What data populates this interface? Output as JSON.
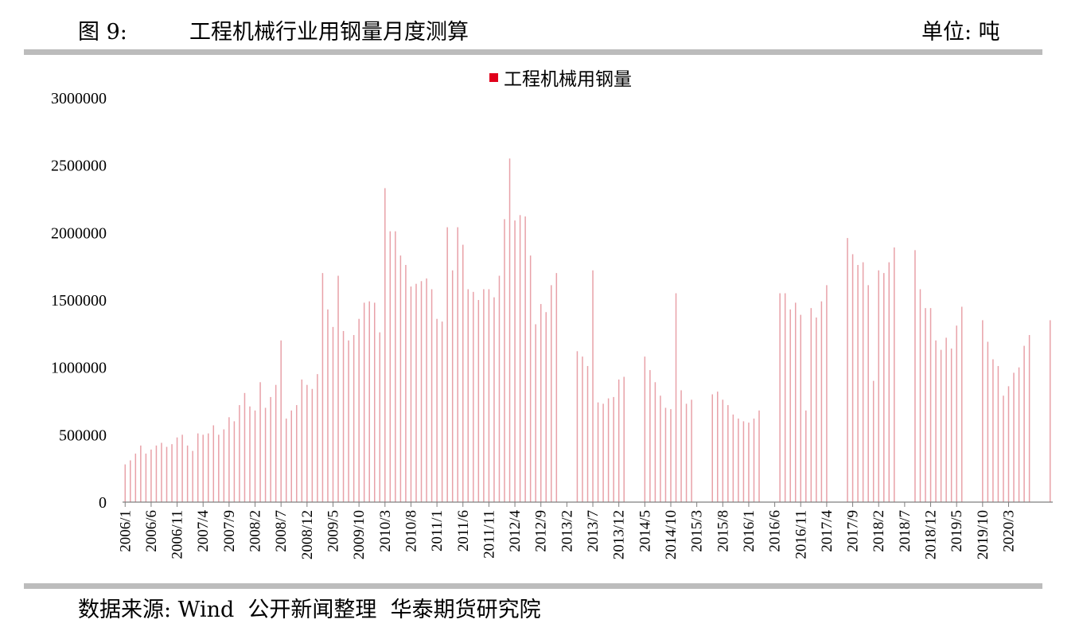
{
  "header": {
    "figure_label": "图 9:",
    "title": "工程机械行业用钢量月度测算",
    "unit": "单位: 吨"
  },
  "footer": {
    "source": "数据来源: Wind  公开新闻整理  华泰期货研究院"
  },
  "colors": {
    "bar": "#e8a1a8",
    "legend_marker": "#e0001b",
    "rule": "#bcbcbc"
  },
  "chart_data": {
    "type": "bar",
    "title": "",
    "xlabel": "",
    "ylabel": "",
    "ylim": [
      0,
      3000000
    ],
    "yticks": [
      "0",
      "500000",
      "1000000",
      "1500000",
      "2000000",
      "2500000",
      "3000000"
    ],
    "grid": false,
    "legend_position": "top-center",
    "xtick_labels": [
      "2006/1",
      "2006/6",
      "2006/11",
      "2007/4",
      "2007/9",
      "2008/2",
      "2008/7",
      "2008/12",
      "2009/5",
      "2009/10",
      "2010/3",
      "2010/8",
      "2011/1",
      "2011/6",
      "2011/11",
      "2012/4",
      "2012/9",
      "2013/2",
      "2013/7",
      "2013/12",
      "2014/5",
      "2014/10",
      "2015/3",
      "2015/8",
      "2016/1",
      "2016/6",
      "2016/11",
      "2017/4",
      "2017/9",
      "2018/2",
      "2018/7",
      "2018/12",
      "2019/5",
      "2019/10",
      "2020/3"
    ],
    "start": "2006/1",
    "series": [
      {
        "name": "工程机械用钢量",
        "values": [
          280000,
          310000,
          360000,
          420000,
          360000,
          390000,
          420000,
          440000,
          410000,
          430000,
          480000,
          500000,
          420000,
          380000,
          510000,
          500000,
          510000,
          570000,
          500000,
          540000,
          630000,
          600000,
          720000,
          810000,
          710000,
          680000,
          890000,
          700000,
          780000,
          870000,
          1200000,
          620000,
          680000,
          720000,
          910000,
          870000,
          840000,
          950000,
          1700000,
          1430000,
          1300000,
          1680000,
          1270000,
          1200000,
          1240000,
          1360000,
          1480000,
          1490000,
          1480000,
          1260000,
          2330000,
          2010000,
          2010000,
          1830000,
          1760000,
          1600000,
          1620000,
          1640000,
          1660000,
          1580000,
          1360000,
          1340000,
          2040000,
          1720000,
          2040000,
          1910000,
          1580000,
          1560000,
          1500000,
          1580000,
          1580000,
          1520000,
          1680000,
          2100000,
          2550000,
          2090000,
          2130000,
          2120000,
          1830000,
          1320000,
          1470000,
          1410000,
          1610000,
          1700000,
          0,
          0,
          0,
          1120000,
          1080000,
          1010000,
          1720000,
          740000,
          730000,
          770000,
          780000,
          910000,
          930000,
          0,
          0,
          0,
          1080000,
          980000,
          890000,
          790000,
          700000,
          690000,
          1550000,
          830000,
          730000,
          760000,
          0,
          0,
          0,
          800000,
          820000,
          760000,
          720000,
          650000,
          620000,
          600000,
          590000,
          620000,
          680000,
          0,
          0,
          0,
          1550000,
          1550000,
          1430000,
          1480000,
          1390000,
          680000,
          1440000,
          1370000,
          1490000,
          1610000,
          0,
          0,
          0,
          1960000,
          1840000,
          1760000,
          1780000,
          1610000,
          900000,
          1720000,
          1700000,
          1780000,
          1890000,
          0,
          0,
          0,
          1870000,
          1580000,
          1440000,
          1440000,
          1200000,
          1130000,
          1220000,
          1140000,
          1310000,
          1450000,
          0,
          0,
          0,
          1350000,
          1190000,
          1060000,
          1010000,
          790000,
          860000,
          960000,
          1000000,
          1160000,
          1240000,
          0,
          0,
          0,
          1350000
        ]
      }
    ]
  }
}
